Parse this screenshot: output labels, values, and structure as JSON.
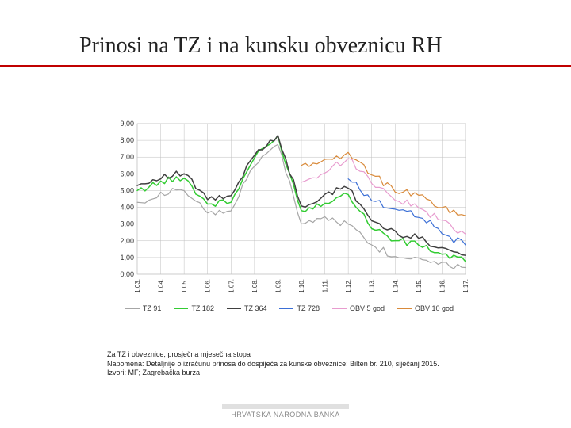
{
  "title": "Prinosi na TZ i na kunsku obveznicu RH",
  "notes": {
    "line1": "Za TZ i obveznice, prosječna mjesečna stopa",
    "line2": "Napomena: Detaljnije o izračunu prinosa do dospijeća za kunske obveznice: Bilten br. 210, siječanj 2015.",
    "line3": "Izvori: MF; Zagrebačka burza"
  },
  "footer": "HRVATSKA NARODNA BANKA",
  "chart": {
    "type": "line",
    "ylim": [
      0,
      9
    ],
    "ytick_step": 1,
    "y_labels": [
      "0,00",
      "1,00",
      "2,00",
      "3,00",
      "4,00",
      "5,00",
      "6,00",
      "7,00",
      "8,00",
      "9,00"
    ],
    "x_labels": [
      "1.03.",
      "1.04.",
      "1.05.",
      "1.06.",
      "1.07.",
      "1.08.",
      "1.09.",
      "1.10.",
      "1.11.",
      "1.12.",
      "1.13.",
      "1.14.",
      "1.15.",
      "1.16.",
      "1.17."
    ],
    "background_color": "#ffffff",
    "grid_color": "#bfbfbf",
    "series": [
      {
        "name": "TZ 91",
        "color": "#a6a6a6",
        "width": 1.2,
        "values": [
          4.3,
          4.8,
          5.0,
          3.6,
          3.8,
          6.5,
          7.8,
          3.0,
          3.4,
          3.0,
          1.8,
          1.0,
          1.0,
          0.7,
          0.4
        ]
      },
      {
        "name": "TZ 182",
        "color": "#33cc33",
        "width": 1.5,
        "values": [
          5.0,
          5.5,
          5.8,
          4.2,
          4.3,
          7.0,
          8.2,
          3.8,
          4.3,
          4.8,
          2.8,
          2.0,
          1.8,
          1.2,
          0.8
        ]
      },
      {
        "name": "TZ 364",
        "color": "#404040",
        "width": 1.5,
        "values": [
          5.3,
          5.8,
          6.0,
          4.5,
          4.6,
          7.2,
          8.3,
          4.0,
          4.7,
          5.2,
          3.2,
          2.5,
          2.2,
          1.6,
          1.1
        ]
      },
      {
        "name": "TZ 728",
        "color": "#3b6fd6",
        "width": 1.2,
        "values": [
          null,
          null,
          null,
          null,
          null,
          null,
          null,
          null,
          null,
          5.7,
          4.5,
          3.8,
          3.5,
          2.4,
          1.8
        ]
      },
      {
        "name": "OBV 5 god",
        "color": "#e89ccf",
        "width": 1.2,
        "values": [
          null,
          null,
          null,
          null,
          null,
          null,
          null,
          5.5,
          6.0,
          7.0,
          5.5,
          4.5,
          4.0,
          3.2,
          2.4
        ]
      },
      {
        "name": "OBV 10 god",
        "color": "#d98a3a",
        "width": 1.2,
        "values": [
          null,
          null,
          null,
          null,
          null,
          null,
          null,
          6.5,
          6.8,
          7.2,
          6.0,
          5.0,
          4.7,
          4.0,
          3.5
        ]
      }
    ]
  }
}
